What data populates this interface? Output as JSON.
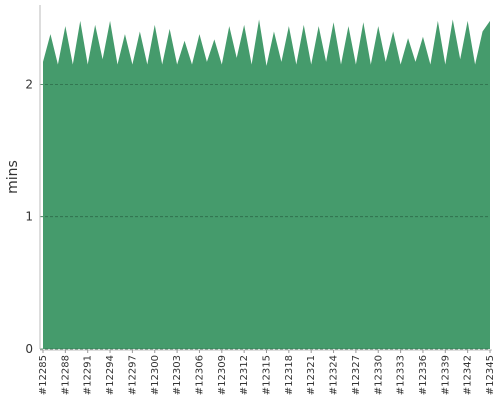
{
  "chart_data": {
    "type": "area",
    "y_label": "mins",
    "color": "#459b6c",
    "grid": true,
    "ylim": [
      0,
      2.6
    ],
    "yticks": [
      0,
      1,
      2
    ],
    "categories": [
      "#12285",
      null,
      null,
      "#12288",
      null,
      null,
      "#12291",
      null,
      null,
      "#12294",
      null,
      null,
      "#12297",
      null,
      null,
      "#12300",
      null,
      null,
      "#12303",
      null,
      null,
      "#12306",
      null,
      null,
      "#12309",
      null,
      null,
      "#12312",
      null,
      null,
      "#12315",
      null,
      null,
      "#12318",
      null,
      null,
      "#12321",
      null,
      null,
      "#12324",
      null,
      null,
      "#12327",
      null,
      null,
      "#12330",
      null,
      null,
      "#12333",
      null,
      null,
      "#12336",
      null,
      null,
      "#12339",
      null,
      null,
      "#12342",
      null,
      null,
      "#12345"
    ],
    "values": [
      2.17,
      2.38,
      2.15,
      2.44,
      2.15,
      2.48,
      2.15,
      2.45,
      2.19,
      2.48,
      2.15,
      2.38,
      2.15,
      2.4,
      2.15,
      2.45,
      2.15,
      2.42,
      2.15,
      2.33,
      2.15,
      2.38,
      2.17,
      2.34,
      2.15,
      2.44,
      2.2,
      2.45,
      2.15,
      2.49,
      2.14,
      2.4,
      2.17,
      2.44,
      2.15,
      2.45,
      2.15,
      2.44,
      2.17,
      2.47,
      2.15,
      2.44,
      2.15,
      2.47,
      2.15,
      2.44,
      2.17,
      2.4,
      2.15,
      2.35,
      2.17,
      2.36,
      2.15,
      2.48,
      2.15,
      2.49,
      2.19,
      2.48,
      2.15,
      2.4,
      2.48
    ]
  }
}
